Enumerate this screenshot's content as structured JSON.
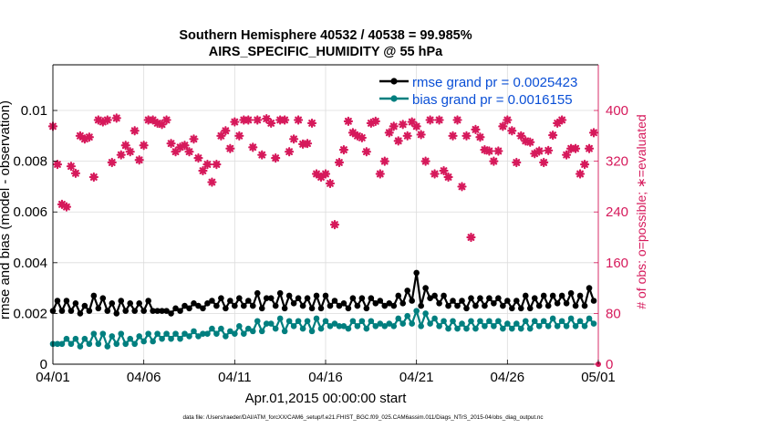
{
  "chart_data": {
    "type": "line",
    "title_line1": "Southern Hemisphere 40532 / 40538 = 99.985%",
    "title_line2": "AIRS_SPECIFIC_HUMIDITY @ 55 hPa",
    "xlabel": "Apr.01,2015 00:00:00 start",
    "ylabel_left": "rmse and bias (model - observation)",
    "ylabel_right": "# of obs: o=possible; ∗=evaluated",
    "footer": "data file: /Users/raeder/DAI/ATM_forcXX/CAM6_setup/f.e21.FHIST_BGC.f09_025.CAM6assim.011/Diags_NTrS_2015-04/obs_diag_output.nc",
    "x_ticks": [
      "04/01",
      "04/06",
      "04/11",
      "04/16",
      "04/21",
      "04/26",
      "05/01"
    ],
    "x_tick_days": [
      0,
      5,
      10,
      15,
      20,
      25,
      30
    ],
    "xlim_days": [
      0,
      30
    ],
    "y_left_ticks": [
      "0",
      "0.002",
      "0.004",
      "0.006",
      "0.008",
      "0.01"
    ],
    "y_left_tick_values": [
      0,
      0.002,
      0.004,
      0.006,
      0.008,
      0.01
    ],
    "ylim_left": [
      0,
      0.0118
    ],
    "y_right_ticks": [
      "0",
      "80",
      "160",
      "240",
      "320",
      "400"
    ],
    "y_right_tick_values": [
      0,
      80,
      160,
      240,
      320,
      400
    ],
    "ylim_right": [
      0,
      472
    ],
    "legend": [
      "rmse grand pr = 0.0025423",
      "bias grand pr = 0.0016155"
    ],
    "colors": {
      "rmse": "#000000",
      "bias": "#007f7f",
      "obs": "#d6195b",
      "legend_text": "#0a4fd6",
      "right_axis": "#d6195b",
      "grid": "#dcdcdc"
    },
    "series": [
      {
        "name": "rmse",
        "x_days": [
          0.0,
          0.25,
          0.5,
          0.75,
          1.0,
          1.25,
          1.5,
          1.75,
          2.0,
          2.25,
          2.5,
          2.75,
          3.0,
          3.25,
          3.5,
          3.75,
          4.0,
          4.25,
          4.5,
          4.75,
          5.0,
          5.25,
          5.5,
          5.75,
          6.0,
          6.25,
          6.5,
          6.75,
          7.0,
          7.25,
          7.5,
          7.75,
          8.0,
          8.25,
          8.5,
          8.75,
          9.0,
          9.25,
          9.5,
          9.75,
          10.0,
          10.25,
          10.5,
          10.75,
          11.0,
          11.25,
          11.5,
          11.75,
          12.0,
          12.25,
          12.5,
          12.75,
          13.0,
          13.25,
          13.5,
          13.75,
          14.0,
          14.25,
          14.5,
          14.75,
          15.0,
          15.25,
          15.5,
          15.75,
          16.0,
          16.25,
          16.5,
          16.75,
          17.0,
          17.25,
          17.5,
          17.75,
          18.0,
          18.25,
          18.5,
          18.75,
          19.0,
          19.25,
          19.5,
          19.75,
          20.0,
          20.25,
          20.5,
          20.75,
          21.0,
          21.25,
          21.5,
          21.75,
          22.0,
          22.25,
          22.5,
          22.75,
          23.0,
          23.25,
          23.5,
          23.75,
          24.0,
          24.25,
          24.5,
          24.75,
          25.0,
          25.25,
          25.5,
          25.75,
          26.0,
          26.25,
          26.5,
          26.75,
          27.0,
          27.25,
          27.5,
          27.75,
          28.0,
          28.25,
          28.5,
          28.75,
          29.0,
          29.25,
          29.5,
          29.75
        ],
        "values": [
          0.0021,
          0.0025,
          0.0021,
          0.0025,
          0.0021,
          0.0024,
          0.002,
          0.0023,
          0.0021,
          0.0027,
          0.0022,
          0.0026,
          0.0021,
          0.0024,
          0.002,
          0.0025,
          0.0021,
          0.0024,
          0.0021,
          0.0024,
          0.0021,
          0.0025,
          0.0021,
          0.0021,
          0.0021,
          0.0021,
          0.002,
          0.0022,
          0.0021,
          0.0023,
          0.0022,
          0.0024,
          0.0023,
          0.0022,
          0.0024,
          0.0025,
          0.0023,
          0.0026,
          0.0022,
          0.0025,
          0.0023,
          0.0026,
          0.0023,
          0.0025,
          0.0023,
          0.0028,
          0.0022,
          0.0026,
          0.0026,
          0.0023,
          0.0028,
          0.0022,
          0.0027,
          0.0024,
          0.0026,
          0.0023,
          0.0026,
          0.0022,
          0.0027,
          0.0022,
          0.0027,
          0.0023,
          0.0025,
          0.0023,
          0.0024,
          0.0022,
          0.0026,
          0.0023,
          0.0026,
          0.0022,
          0.0026,
          0.0024,
          0.0025,
          0.0023,
          0.0024,
          0.0023,
          0.0027,
          0.0024,
          0.0029,
          0.0025,
          0.0036,
          0.0023,
          0.003,
          0.0026,
          0.0027,
          0.0024,
          0.0027,
          0.0023,
          0.0025,
          0.0023,
          0.0025,
          0.0022,
          0.0026,
          0.0023,
          0.0026,
          0.0023,
          0.0026,
          0.0024,
          0.0026,
          0.0023,
          0.0025,
          0.0022,
          0.0025,
          0.0022,
          0.0027,
          0.0022,
          0.0026,
          0.0023,
          0.0027,
          0.0023,
          0.0027,
          0.0024,
          0.0027,
          0.0024,
          0.0028,
          0.0023,
          0.0027,
          0.0023,
          0.003,
          0.0025
        ]
      },
      {
        "name": "bias",
        "x_days": [
          0.0,
          0.25,
          0.5,
          0.75,
          1.0,
          1.25,
          1.5,
          1.75,
          2.0,
          2.25,
          2.5,
          2.75,
          3.0,
          3.25,
          3.5,
          3.75,
          4.0,
          4.25,
          4.5,
          4.75,
          5.0,
          5.25,
          5.5,
          5.75,
          6.0,
          6.25,
          6.5,
          6.75,
          7.0,
          7.25,
          7.5,
          7.75,
          8.0,
          8.25,
          8.5,
          8.75,
          9.0,
          9.25,
          9.5,
          9.75,
          10.0,
          10.25,
          10.5,
          10.75,
          11.0,
          11.25,
          11.5,
          11.75,
          12.0,
          12.25,
          12.5,
          12.75,
          13.0,
          13.25,
          13.5,
          13.75,
          14.0,
          14.25,
          14.5,
          14.75,
          15.0,
          15.25,
          15.5,
          15.75,
          16.0,
          16.25,
          16.5,
          16.75,
          17.0,
          17.25,
          17.5,
          17.75,
          18.0,
          18.25,
          18.5,
          18.75,
          19.0,
          19.25,
          19.5,
          19.75,
          20.0,
          20.25,
          20.5,
          20.75,
          21.0,
          21.25,
          21.5,
          21.75,
          22.0,
          22.25,
          22.5,
          22.75,
          23.0,
          23.25,
          23.5,
          23.75,
          24.0,
          24.25,
          24.5,
          24.75,
          25.0,
          25.25,
          25.5,
          25.75,
          26.0,
          26.25,
          26.5,
          26.75,
          27.0,
          27.25,
          27.5,
          27.75,
          28.0,
          28.25,
          28.5,
          28.75,
          29.0,
          29.25,
          29.5,
          29.75
        ],
        "values": [
          0.0008,
          0.0008,
          0.0008,
          0.001,
          0.0008,
          0.001,
          0.0007,
          0.001,
          0.0008,
          0.0012,
          0.0008,
          0.0012,
          0.0007,
          0.0011,
          0.0008,
          0.0012,
          0.0008,
          0.001,
          0.0008,
          0.0011,
          0.0009,
          0.0012,
          0.0009,
          0.0012,
          0.001,
          0.0012,
          0.001,
          0.0012,
          0.001,
          0.0012,
          0.0011,
          0.0013,
          0.0011,
          0.0012,
          0.0012,
          0.0014,
          0.0012,
          0.0014,
          0.0011,
          0.0013,
          0.0012,
          0.0015,
          0.0012,
          0.0014,
          0.0013,
          0.0017,
          0.0013,
          0.0016,
          0.0016,
          0.0014,
          0.0018,
          0.0013,
          0.0017,
          0.0015,
          0.0017,
          0.0014,
          0.0017,
          0.0013,
          0.0018,
          0.0014,
          0.0017,
          0.0015,
          0.0016,
          0.0015,
          0.0015,
          0.0014,
          0.0017,
          0.0015,
          0.0017,
          0.0014,
          0.0017,
          0.0015,
          0.0016,
          0.0015,
          0.0016,
          0.0015,
          0.0018,
          0.0016,
          0.0019,
          0.0016,
          0.0021,
          0.0015,
          0.002,
          0.0016,
          0.0018,
          0.0015,
          0.0017,
          0.0014,
          0.0017,
          0.0014,
          0.0016,
          0.0014,
          0.0017,
          0.0014,
          0.0017,
          0.0015,
          0.0017,
          0.0015,
          0.0017,
          0.0014,
          0.0016,
          0.0014,
          0.0016,
          0.0014,
          0.0017,
          0.0014,
          0.0017,
          0.0015,
          0.0017,
          0.0015,
          0.0018,
          0.0015,
          0.0017,
          0.0015,
          0.0018,
          0.0015,
          0.0017,
          0.0015,
          0.0018,
          0.0016
        ]
      },
      {
        "name": "obs_evaluated",
        "axis": "right",
        "x_days": [
          0.0,
          0.25,
          0.5,
          0.75,
          1.0,
          1.25,
          1.5,
          1.75,
          2.0,
          2.25,
          2.5,
          2.75,
          3.0,
          3.25,
          3.5,
          3.75,
          4.0,
          4.25,
          4.5,
          4.75,
          5.0,
          5.25,
          5.5,
          5.75,
          6.0,
          6.25,
          6.5,
          6.75,
          7.0,
          7.25,
          7.5,
          7.75,
          8.0,
          8.25,
          8.5,
          8.75,
          9.0,
          9.25,
          9.5,
          9.75,
          10.0,
          10.25,
          10.5,
          10.75,
          11.0,
          11.25,
          11.5,
          11.75,
          12.0,
          12.25,
          12.5,
          12.75,
          13.0,
          13.25,
          13.5,
          13.75,
          14.0,
          14.25,
          14.5,
          14.75,
          15.0,
          15.25,
          15.5,
          15.75,
          16.0,
          16.25,
          16.5,
          16.75,
          17.0,
          17.25,
          17.5,
          17.75,
          18.0,
          18.25,
          18.5,
          18.75,
          19.0,
          19.25,
          19.5,
          19.75,
          20.0,
          20.25,
          20.5,
          20.75,
          21.0,
          21.25,
          21.5,
          21.75,
          22.0,
          22.25,
          22.5,
          22.75,
          23.0,
          23.25,
          23.5,
          23.75,
          24.0,
          24.25,
          24.5,
          24.75,
          25.0,
          25.25,
          25.5,
          25.75,
          26.0,
          26.25,
          26.5,
          26.75,
          27.0,
          27.25,
          27.5,
          27.75,
          28.0,
          28.25,
          28.5,
          28.75,
          29.0,
          29.25,
          29.5,
          29.75
        ],
        "values": [
          375,
          315,
          252,
          248,
          312,
          301,
          360,
          355,
          358,
          295,
          385,
          382,
          385,
          318,
          388,
          330,
          345,
          335,
          368,
          322,
          345,
          385,
          385,
          380,
          378,
          385,
          348,
          335,
          342,
          345,
          335,
          355,
          325,
          305,
          315,
          287,
          315,
          360,
          368,
          340,
          382,
          360,
          385,
          385,
          342,
          385,
          330,
          387,
          380,
          325,
          385,
          385,
          335,
          355,
          385,
          347,
          348,
          380,
          300,
          295,
          300,
          285,
          220,
          318,
          338,
          383,
          365,
          360,
          357,
          335,
          380,
          383,
          300,
          320,
          365,
          375,
          352,
          378,
          360,
          382,
          375,
          362,
          320,
          385,
          300,
          385,
          305,
          295,
          360,
          385,
          280,
          360,
          200,
          370,
          358,
          338,
          336,
          320,
          336,
          375,
          385,
          368,
          318,
          360,
          352,
          350,
          332,
          336,
          318,
          337,
          361,
          380,
          385,
          330,
          340,
          340,
          300,
          315,
          340,
          365
        ]
      }
    ]
  }
}
